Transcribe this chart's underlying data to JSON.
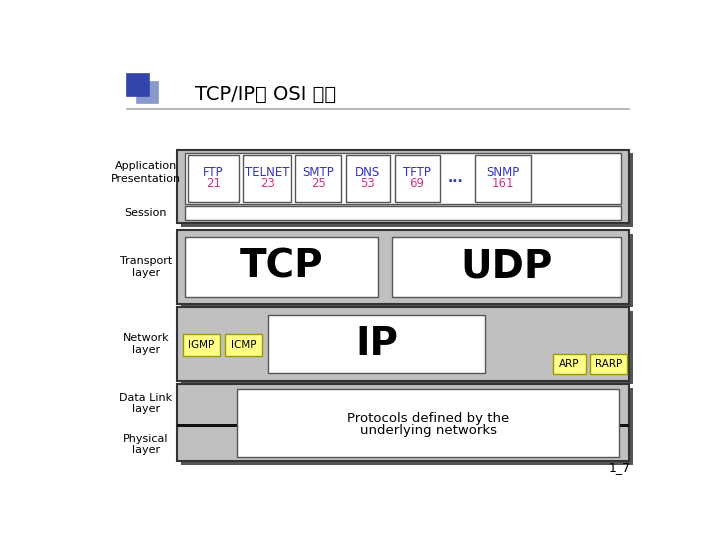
{
  "title": "TCP/IP와 OSI 모델",
  "bg_color": "#ffffff",
  "light_gray": "#c0c0c0",
  "dark_shadow": "#555555",
  "white": "#ffffff",
  "yellow": "#ffff88",
  "blue_text": "#3333bb",
  "pink_text": "#cc3388",
  "protocols_top": [
    {
      "name": "FTP",
      "port": "21"
    },
    {
      "name": "TELNET",
      "port": "23"
    },
    {
      "name": "SMTP",
      "port": "25"
    },
    {
      "name": "DNS",
      "port": "53"
    },
    {
      "name": "TFTP",
      "port": "69"
    },
    {
      "name": "SNMP",
      "port": "161"
    }
  ],
  "page_number": "1_7",
  "icon_dark": "#3344aa",
  "icon_light": "#8899cc"
}
